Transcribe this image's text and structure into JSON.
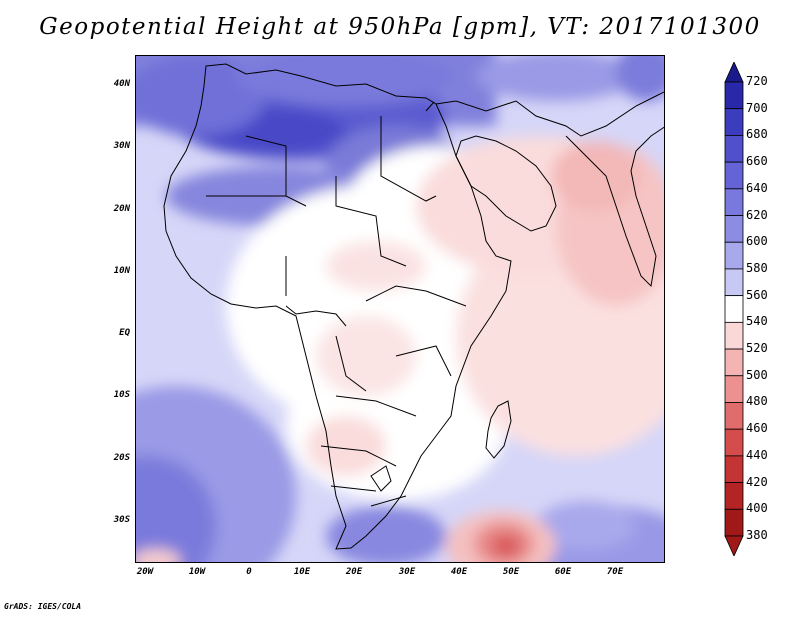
{
  "title": "Geopotential Height at 950hPa [gpm], VT: 2017101300",
  "credit": "GrADS: IGES/COLA",
  "map": {
    "latitude_labels": [
      "40N",
      "30N",
      "20N",
      "10N",
      "EQ",
      "10S",
      "20S",
      "30S"
    ],
    "longitude_labels": [
      "20W",
      "10W",
      "0",
      "10E",
      "20E",
      "30E",
      "40E",
      "50E",
      "60E",
      "70E"
    ]
  },
  "legend": {
    "units": "gpm",
    "levels": [
      "720",
      "700",
      "680",
      "660",
      "640",
      "620",
      "600",
      "580",
      "560",
      "540",
      "520",
      "500",
      "480",
      "460",
      "440",
      "420",
      "400",
      "380"
    ],
    "colors": [
      "#1a1a8c",
      "#2828a8",
      "#3c3cbe",
      "#5050cc",
      "#6464d6",
      "#7878de",
      "#8c8ce4",
      "#a8a8ec",
      "#c8c8f4",
      "#ffffff",
      "#fad8d8",
      "#f4b4b4",
      "#ec9090",
      "#e06c6c",
      "#d44c4c",
      "#c43434",
      "#b42424",
      "#a01818"
    ]
  },
  "colors": {
    "high_purple": "#5a5ad2",
    "mid_purple": "#8c8ce6",
    "light_purple": "#d2d2f8",
    "white": "#ffffff",
    "light_pink": "#f8d8d8",
    "pink": "#f2bcbc",
    "red": "#e27070"
  }
}
